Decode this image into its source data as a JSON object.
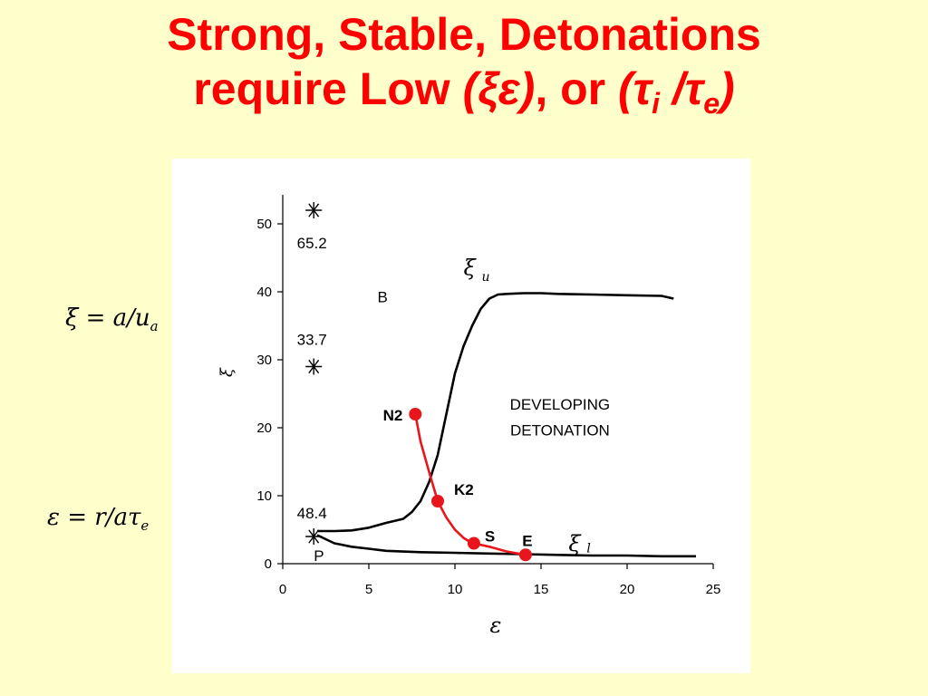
{
  "title": {
    "line1": "Strong, Stable, Detonations",
    "line2_pre": "require Low ",
    "line2_xe": "(ξε)",
    "line2_mid": ", or ",
    "line2_tau_open": "(τ",
    "line2_sub_i": "i",
    "line2_slash": " /τ",
    "line2_sub_e": "e",
    "line2_close": ")"
  },
  "equations": {
    "xi": {
      "lhs": "ξ",
      "eq": " = a",
      "slash": "/",
      "u": "u",
      "sub": "a"
    },
    "eps": {
      "lhs": "ε",
      "eq": " = r",
      "slash": "/",
      "a": "aτ",
      "sub": "e"
    }
  },
  "chart_data": {
    "type": "line",
    "xlabel": "ε",
    "ylabel": "ξ",
    "xlim": [
      0,
      25
    ],
    "ylim": [
      0,
      55
    ],
    "xticks": [
      0,
      5,
      10,
      15,
      20,
      25
    ],
    "yticks": [
      0,
      10,
      20,
      30,
      40,
      50
    ],
    "series": [
      {
        "name": "ξu",
        "color": "#000000",
        "x": [
          2.0,
          3.0,
          4.0,
          5.0,
          6.0,
          7.0,
          7.5,
          8.0,
          8.5,
          9.0,
          9.5,
          10.0,
          10.5,
          11.0,
          11.5,
          12.0,
          12.5,
          13.0,
          14.0,
          15.0,
          16.0,
          18.0,
          20.0,
          22.0,
          22.7
        ],
        "y": [
          4.8,
          4.8,
          4.9,
          5.3,
          6.0,
          6.6,
          7.6,
          9.2,
          12.0,
          16.0,
          22.0,
          28.0,
          32.0,
          35.0,
          37.5,
          39.0,
          39.6,
          39.7,
          39.8,
          39.8,
          39.7,
          39.6,
          39.5,
          39.4,
          39.0
        ]
      },
      {
        "name": "ξl",
        "color": "#000000",
        "x": [
          2.0,
          2.5,
          3.0,
          4.0,
          5.0,
          6.0,
          8.0,
          10.0,
          12.0,
          14.0,
          16.0,
          18.0,
          20.0,
          22.0,
          24.0
        ],
        "y": [
          4.2,
          3.6,
          3.0,
          2.5,
          2.2,
          1.9,
          1.7,
          1.6,
          1.5,
          1.4,
          1.3,
          1.2,
          1.2,
          1.1,
          1.1
        ]
      },
      {
        "name": "",
        "color": "#E8161C",
        "x": [
          7.7,
          8.0,
          8.5,
          9.0,
          9.5,
          10.0,
          10.5,
          11.0,
          11.1,
          12.0,
          13.0,
          14.1
        ],
        "y": [
          22.0,
          18.0,
          13.5,
          9.2,
          6.8,
          5.0,
          3.8,
          3.0,
          3.0,
          2.5,
          1.8,
          1.3
        ]
      }
    ],
    "points": [
      {
        "label": "N2",
        "x": 7.7,
        "y": 22.0
      },
      {
        "label": "K2",
        "x": 9.0,
        "y": 9.2
      },
      {
        "label": "S",
        "x": 11.1,
        "y": 3.0
      },
      {
        "label": "E",
        "x": 14.1,
        "y": 1.3
      }
    ],
    "asterisks": [
      {
        "x": 1.8,
        "y": 52.0,
        "label": "65.2"
      },
      {
        "x": 1.8,
        "y": 29.0,
        "label": "33.7"
      },
      {
        "x": 1.8,
        "y": 4.0,
        "label": "48.4"
      }
    ],
    "region_labels": {
      "b": "B",
      "p": "P",
      "developing_line1": "DEVELOPING",
      "developing_line2": "DETONATION"
    },
    "curve_labels": {
      "xi_u": "ξ",
      "xi_u_sub": "u",
      "xi_l": "ξ",
      "xi_l_sub": "l"
    },
    "grid": false,
    "legend": "none"
  }
}
